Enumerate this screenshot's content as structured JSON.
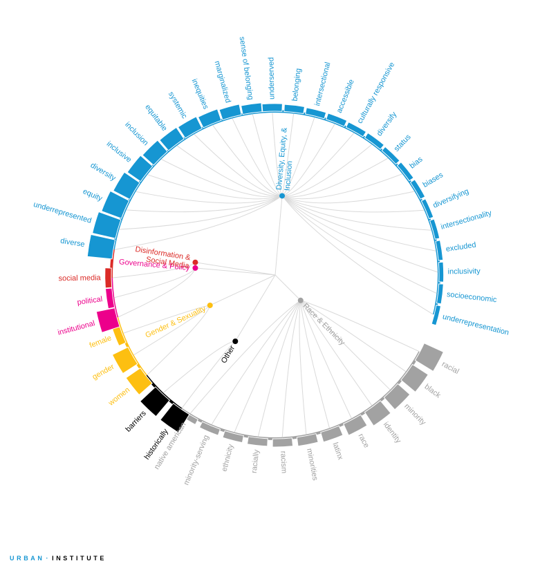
{
  "chart_data": {
    "type": "radial-hierarchical-edge-bundle",
    "colors": {
      "Diversity, Equity, & Inclusion": "#1696d2",
      "Race & Ethnicity": "#a2a2a2",
      "Other": "#000000",
      "Gender & Sexuality": "#fdbf11",
      "Governance & Policy": "#ec008b",
      "Disinformation & Social Media": "#db2b27",
      "link": "#d9d9d9"
    },
    "groups": [
      {
        "name": "Diversity, Equity, & Inclusion",
        "label": "Diversity, Equity, &\nInclusion"
      },
      {
        "name": "Race & Ethnicity",
        "label": "Race & Ethnicity"
      },
      {
        "name": "Other",
        "label": "Other"
      },
      {
        "name": "Gender & Sexuality",
        "label": "Gender & Sexuality"
      },
      {
        "name": "Governance & Policy",
        "label": "Governance & Policy"
      },
      {
        "name": "Disinformation & Social Media",
        "label": "Disinformation &\nSocial Media"
      }
    ],
    "terms": [
      {
        "word": "underserved",
        "group": "Diversity, Equity, & Inclusion",
        "value": 0.4
      },
      {
        "word": "belonging",
        "group": "Diversity, Equity, & Inclusion",
        "value": 0.35
      },
      {
        "word": "intersectional",
        "group": "Diversity, Equity, & Inclusion",
        "value": 0.3
      },
      {
        "word": "accessible",
        "group": "Diversity, Equity, & Inclusion",
        "value": 0.3
      },
      {
        "word": "culturally responsive",
        "group": "Diversity, Equity, & Inclusion",
        "value": 0.25
      },
      {
        "word": "diversify",
        "group": "Diversity, Equity, & Inclusion",
        "value": 0.25
      },
      {
        "word": "status",
        "group": "Diversity, Equity, & Inclusion",
        "value": 0.2
      },
      {
        "word": "bias",
        "group": "Diversity, Equity, & Inclusion",
        "value": 0.2
      },
      {
        "word": "biases",
        "group": "Diversity, Equity, & Inclusion",
        "value": 0.2
      },
      {
        "word": "diversifying",
        "group": "Diversity, Equity, & Inclusion",
        "value": 0.15
      },
      {
        "word": "intersectionality",
        "group": "Diversity, Equity, & Inclusion",
        "value": 0.15
      },
      {
        "word": "excluded",
        "group": "Diversity, Equity, & Inclusion",
        "value": 0.15
      },
      {
        "word": "inclusivity",
        "group": "Diversity, Equity, & Inclusion",
        "value": 0.15
      },
      {
        "word": "socioeconomic",
        "group": "Diversity, Equity, & Inclusion",
        "value": 0.15
      },
      {
        "word": "underrepresentation",
        "group": "Diversity, Equity, & Inclusion",
        "value": 0.15
      },
      {
        "word": "racial",
        "group": "Race & Ethnicity",
        "value": 1.5
      },
      {
        "word": "black",
        "group": "Race & Ethnicity",
        "value": 1.3
      },
      {
        "word": "minority",
        "group": "Race & Ethnicity",
        "value": 1.1
      },
      {
        "word": "identity",
        "group": "Race & Ethnicity",
        "value": 1.1
      },
      {
        "word": "race",
        "group": "Race & Ethnicity",
        "value": 0.8
      },
      {
        "word": "latinx",
        "group": "Race & Ethnicity",
        "value": 0.6
      },
      {
        "word": "minorities",
        "group": "Race & Ethnicity",
        "value": 0.5
      },
      {
        "word": "racism",
        "group": "Race & Ethnicity",
        "value": 0.45
      },
      {
        "word": "racially",
        "group": "Race & Ethnicity",
        "value": 0.4
      },
      {
        "word": "ethnicity",
        "group": "Race & Ethnicity",
        "value": 0.35
      },
      {
        "word": "minority-serving",
        "group": "Race & Ethnicity",
        "value": 0.3
      },
      {
        "word": "native american",
        "group": "Race & Ethnicity",
        "value": 0.25
      },
      {
        "word": "historically",
        "group": "Other",
        "value": 1.5
      },
      {
        "word": "barriers",
        "group": "Other",
        "value": 1.5
      },
      {
        "word": "women",
        "group": "Gender & Sexuality",
        "value": 1.2
      },
      {
        "word": "gender",
        "group": "Gender & Sexuality",
        "value": 1.2
      },
      {
        "word": "female",
        "group": "Gender & Sexuality",
        "value": 0.4
      },
      {
        "word": "institutional",
        "group": "Governance & Policy",
        "value": 1.3
      },
      {
        "word": "political",
        "group": "Governance & Policy",
        "value": 0.3
      },
      {
        "word": "social media",
        "group": "Disinformation & Social Media",
        "value": 0.3
      },
      {
        "word": "diverse",
        "group": "Diversity, Equity, & Inclusion",
        "value": 1.8
      },
      {
        "word": "underrepresented",
        "group": "Diversity, Equity, & Inclusion",
        "value": 1.7
      },
      {
        "word": "equity",
        "group": "Diversity, Equity, & Inclusion",
        "value": 1.5
      },
      {
        "word": "diversity",
        "group": "Diversity, Equity, & Inclusion",
        "value": 1.3
      },
      {
        "word": "inclusive",
        "group": "Diversity, Equity, & Inclusion",
        "value": 1.1
      },
      {
        "word": "inclusion",
        "group": "Diversity, Equity, & Inclusion",
        "value": 1.0
      },
      {
        "word": "equitable",
        "group": "Diversity, Equity, & Inclusion",
        "value": 0.9
      },
      {
        "word": "systemic",
        "group": "Diversity, Equity, & Inclusion",
        "value": 0.85
      },
      {
        "word": "inequities",
        "group": "Diversity, Equity, & Inclusion",
        "value": 0.75
      },
      {
        "word": "marginalized",
        "group": "Diversity, Equity, & Inclusion",
        "value": 0.65
      },
      {
        "word": "sense of belonging",
        "group": "Diversity, Equity, & Inclusion",
        "value": 0.5
      }
    ]
  },
  "footer": {
    "org_part1": "URBAN",
    "separator": "·",
    "org_part2": "INSTITUTE"
  }
}
